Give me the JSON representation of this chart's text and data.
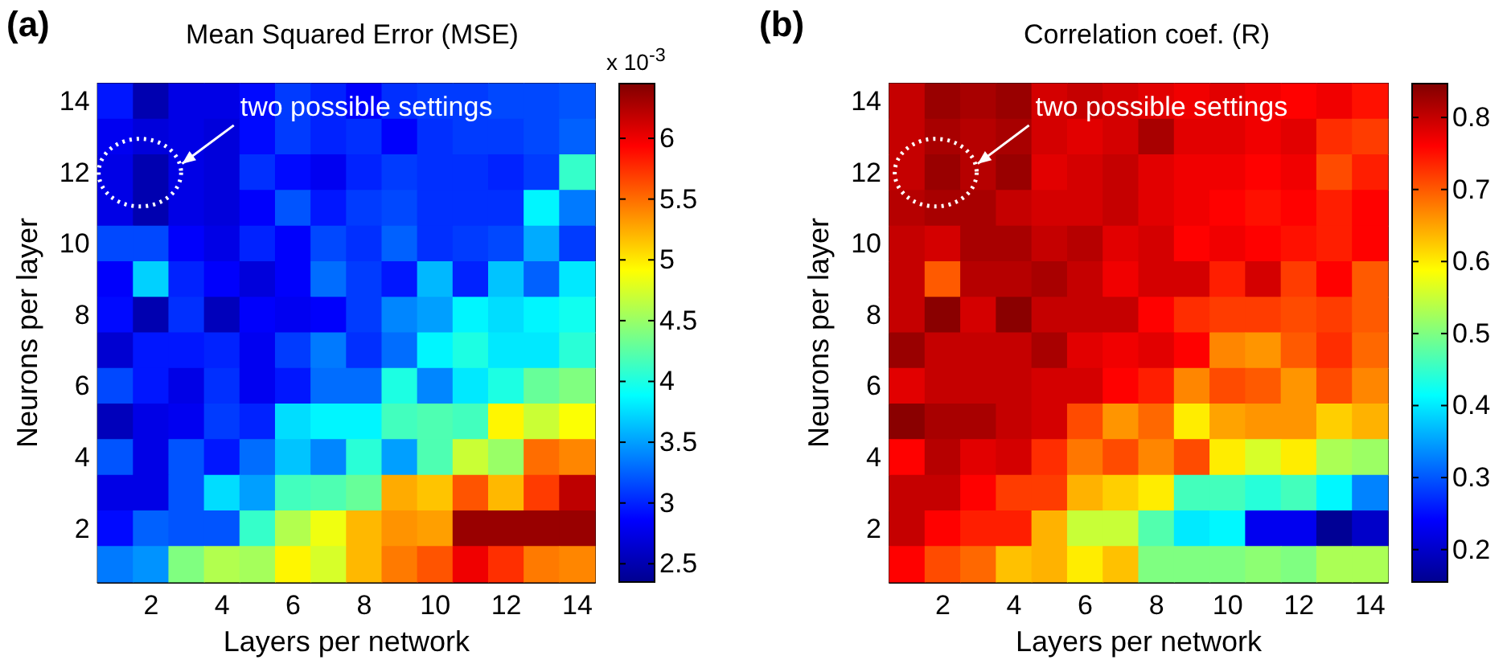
{
  "chart_data": [
    {
      "type": "heatmap",
      "title": "Mean Squared Error (MSE)",
      "xlabel": "Layers per network",
      "ylabel": "Neurons per layer",
      "clabel": "x 10$^{-3}$",
      "annotations": [
        "(a)",
        "two possible settings"
      ],
      "categories": [
        null,
        "2",
        null,
        "4",
        null,
        "6",
        null,
        "8",
        null,
        "10",
        null,
        "12",
        null,
        "14"
      ],
      "y_categories": [
        "14",
        null,
        "12",
        null,
        "10",
        null,
        "8",
        null,
        "6",
        null,
        "4",
        null,
        "2",
        null
      ],
      "cells": [
        [
          2.95,
          2.5,
          2.75,
          2.75,
          2.9,
          3.1,
          3.0,
          2.85,
          3.05,
          3.1,
          3.1,
          3.15,
          3.15,
          3.2
        ],
        [
          2.8,
          2.7,
          2.75,
          2.7,
          2.9,
          3.1,
          3.0,
          3.05,
          2.85,
          3.05,
          3.1,
          3.1,
          3.15,
          3.25
        ],
        [
          2.75,
          2.5,
          2.75,
          2.7,
          3.05,
          2.9,
          2.8,
          3.0,
          3.1,
          3.05,
          3.05,
          3.0,
          3.1,
          4.1
        ],
        [
          2.75,
          2.5,
          2.75,
          2.7,
          2.85,
          3.2,
          2.95,
          3.1,
          3.15,
          3.05,
          3.05,
          3.05,
          3.85,
          3.35
        ],
        [
          3.15,
          3.15,
          2.85,
          2.75,
          3.0,
          2.85,
          3.15,
          3.05,
          3.25,
          3.05,
          3.1,
          3.15,
          3.55,
          3.1
        ],
        [
          2.85,
          3.7,
          3.0,
          2.85,
          2.7,
          2.85,
          3.3,
          3.1,
          2.95,
          3.6,
          3.0,
          3.65,
          3.25,
          3.8
        ],
        [
          2.9,
          2.5,
          3.05,
          2.55,
          2.85,
          2.8,
          2.85,
          3.1,
          3.4,
          3.5,
          3.85,
          3.75,
          3.85,
          3.95
        ],
        [
          2.65,
          2.95,
          2.95,
          3.0,
          2.8,
          3.1,
          3.35,
          3.05,
          3.3,
          3.85,
          4.0,
          3.8,
          3.8,
          4.05
        ],
        [
          3.15,
          2.95,
          2.75,
          3.05,
          2.8,
          2.95,
          3.3,
          3.3,
          4.0,
          3.4,
          3.8,
          4.0,
          4.3,
          4.4
        ],
        [
          2.55,
          2.75,
          2.8,
          3.1,
          3.0,
          3.75,
          3.85,
          3.85,
          4.15,
          4.2,
          4.15,
          4.95,
          4.7,
          4.9
        ],
        [
          3.2,
          2.75,
          3.2,
          2.95,
          3.3,
          3.65,
          3.4,
          4.05,
          3.5,
          4.2,
          4.7,
          4.5,
          5.5,
          5.4
        ],
        [
          2.75,
          2.75,
          3.2,
          3.75,
          3.5,
          4.15,
          4.2,
          4.3,
          5.25,
          5.15,
          5.6,
          5.2,
          5.7,
          6.2
        ],
        [
          2.9,
          3.25,
          3.2,
          3.2,
          4.1,
          4.6,
          4.85,
          5.2,
          5.35,
          5.3,
          6.35,
          6.35,
          6.35,
          6.35
        ],
        [
          3.35,
          3.45,
          4.4,
          4.6,
          4.55,
          4.95,
          4.75,
          5.2,
          5.45,
          5.6,
          6.0,
          5.75,
          5.45,
          5.4
        ]
      ],
      "clim": [
        2.35,
        6.45
      ],
      "cticks": [
        2.5,
        3,
        3.5,
        4,
        4.5,
        5,
        5.5,
        6
      ]
    },
    {
      "type": "heatmap",
      "title": "Correlation coef. (R)",
      "xlabel": "Layers per network",
      "ylabel": "Neurons per layer",
      "annotations": [
        "(b)",
        "two possible settings"
      ],
      "categories": [
        null,
        "2",
        null,
        "4",
        null,
        "6",
        null,
        "8",
        null,
        "10",
        null,
        "12",
        null,
        "14"
      ],
      "y_categories": [
        "14",
        null,
        "12",
        null,
        "10",
        null,
        "8",
        null,
        "6",
        null,
        "4",
        null,
        "2",
        null
      ],
      "cells": [
        [
          0.8,
          0.83,
          0.82,
          0.83,
          0.79,
          0.8,
          0.79,
          0.78,
          0.77,
          0.78,
          0.77,
          0.76,
          0.77,
          0.75
        ],
        [
          0.8,
          0.82,
          0.81,
          0.82,
          0.79,
          0.78,
          0.79,
          0.82,
          0.78,
          0.78,
          0.77,
          0.78,
          0.73,
          0.72
        ],
        [
          0.8,
          0.83,
          0.81,
          0.83,
          0.78,
          0.79,
          0.8,
          0.78,
          0.77,
          0.77,
          0.76,
          0.77,
          0.71,
          0.74
        ],
        [
          0.81,
          0.82,
          0.82,
          0.8,
          0.79,
          0.79,
          0.8,
          0.78,
          0.77,
          0.76,
          0.75,
          0.76,
          0.74,
          0.76
        ],
        [
          0.8,
          0.79,
          0.82,
          0.82,
          0.8,
          0.81,
          0.78,
          0.79,
          0.76,
          0.77,
          0.76,
          0.75,
          0.74,
          0.76
        ],
        [
          0.8,
          0.7,
          0.81,
          0.81,
          0.82,
          0.8,
          0.77,
          0.79,
          0.79,
          0.74,
          0.79,
          0.72,
          0.76,
          0.7
        ],
        [
          0.8,
          0.84,
          0.79,
          0.84,
          0.8,
          0.8,
          0.8,
          0.76,
          0.73,
          0.72,
          0.72,
          0.71,
          0.72,
          0.7
        ],
        [
          0.83,
          0.8,
          0.8,
          0.8,
          0.82,
          0.78,
          0.77,
          0.78,
          0.76,
          0.67,
          0.66,
          0.7,
          0.73,
          0.69
        ],
        [
          0.78,
          0.8,
          0.8,
          0.8,
          0.79,
          0.79,
          0.76,
          0.74,
          0.67,
          0.71,
          0.7,
          0.66,
          0.71,
          0.67
        ],
        [
          0.84,
          0.82,
          0.82,
          0.8,
          0.79,
          0.71,
          0.66,
          0.69,
          0.6,
          0.65,
          0.66,
          0.66,
          0.62,
          0.64
        ],
        [
          0.76,
          0.81,
          0.78,
          0.79,
          0.73,
          0.68,
          0.71,
          0.67,
          0.71,
          0.6,
          0.56,
          0.6,
          0.53,
          0.52
        ],
        [
          0.8,
          0.8,
          0.76,
          0.72,
          0.72,
          0.64,
          0.62,
          0.6,
          0.46,
          0.46,
          0.44,
          0.46,
          0.41,
          0.33
        ],
        [
          0.8,
          0.76,
          0.74,
          0.74,
          0.64,
          0.55,
          0.55,
          0.47,
          0.4,
          0.41,
          0.23,
          0.23,
          0.16,
          0.2
        ],
        [
          0.76,
          0.71,
          0.69,
          0.63,
          0.64,
          0.6,
          0.63,
          0.5,
          0.5,
          0.5,
          0.51,
          0.5,
          0.53,
          0.53
        ]
      ],
      "clim": [
        0.155,
        0.847
      ],
      "cticks": [
        0.2,
        0.3,
        0.4,
        0.5,
        0.6,
        0.7,
        0.8
      ]
    }
  ]
}
